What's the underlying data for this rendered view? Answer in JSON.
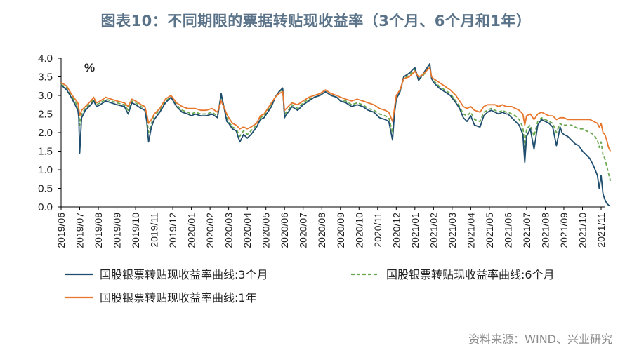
{
  "header": {
    "title": "图表10：不同期限的票据转贴现收益率（3个月、6个月和1年）"
  },
  "footer": {
    "source": "资料来源：WIND、兴业研究"
  },
  "chart_data": {
    "type": "line",
    "unit_label": "%",
    "ylim": [
      0,
      4
    ],
    "y_ticks": [
      "0.0",
      "0.5",
      "1.0",
      "1.5",
      "2.0",
      "2.5",
      "3.0",
      "3.5",
      "4.0"
    ],
    "x_ticks": [
      "2019/06",
      "2019/07",
      "2019/08",
      "2019/09",
      "2019/10",
      "2019/11",
      "2019/12",
      "2020/01",
      "2020/02",
      "2020/03",
      "2020/04",
      "2020/05",
      "2020/06",
      "2020/07",
      "2020/08",
      "2020/09",
      "2020/10",
      "2020/11",
      "2020/12",
      "2021/01",
      "2021/02",
      "2021/03",
      "2021/04",
      "2021/05",
      "2021/06",
      "2021/07",
      "2021/08",
      "2021/09",
      "2021/10",
      "2021/11"
    ],
    "grid": false,
    "legend_position": "bottom",
    "x": [
      0,
      0.3,
      0.6,
      0.9,
      0.95,
      1.0,
      1.1,
      1.3,
      1.6,
      1.75,
      1.9,
      2.1,
      2.4,
      2.7,
      3.0,
      3.4,
      3.6,
      3.8,
      4.0,
      4.3,
      4.5,
      4.6,
      4.7,
      4.85,
      5.0,
      5.3,
      5.6,
      5.9,
      6.2,
      6.5,
      6.8,
      7.0,
      7.2,
      7.5,
      7.8,
      8.1,
      8.4,
      8.6,
      8.9,
      9.0,
      9.2,
      9.4,
      9.6,
      9.8,
      10.0,
      10.2,
      10.5,
      10.7,
      10.9,
      11.1,
      11.3,
      11.5,
      11.7,
      11.9,
      12.0,
      12.1,
      12.2,
      12.4,
      12.7,
      13.0,
      13.3,
      13.6,
      13.9,
      14.2,
      14.5,
      14.8,
      15.0,
      15.3,
      15.6,
      15.9,
      16.2,
      16.5,
      16.8,
      17.1,
      17.4,
      17.6,
      17.8,
      17.9,
      18.0,
      18.2,
      18.4,
      18.7,
      19.0,
      19.2,
      19.4,
      19.6,
      19.8,
      19.9,
      20.0,
      20.3,
      20.6,
      20.9,
      21.2,
      21.4,
      21.6,
      21.8,
      22.0,
      22.2,
      22.5,
      22.7,
      22.9,
      23.1,
      23.3,
      23.5,
      23.7,
      23.9,
      24.0,
      24.2,
      24.4,
      24.6,
      24.8,
      24.9,
      25.0,
      25.2,
      25.4,
      25.6,
      25.8,
      26.0,
      26.2,
      26.4,
      26.6,
      26.8,
      26.9,
      27.0,
      27.2,
      27.4,
      27.6,
      27.8,
      28.0,
      28.2,
      28.4,
      28.6,
      28.8,
      28.9,
      29.0,
      29.1,
      29.2,
      29.3,
      29.4,
      29.5
    ],
    "series": [
      {
        "name": "国股银票转贴现收益率曲线:3个月",
        "color": "#1f4e6e",
        "dash": "solid",
        "values": [
          3.28,
          3.15,
          2.9,
          2.6,
          2.4,
          1.45,
          2.4,
          2.6,
          2.75,
          2.85,
          2.7,
          2.75,
          2.85,
          2.8,
          2.75,
          2.7,
          2.5,
          2.8,
          2.75,
          2.65,
          2.6,
          2.3,
          1.75,
          2.15,
          2.35,
          2.55,
          2.8,
          2.95,
          2.7,
          2.55,
          2.5,
          2.45,
          2.5,
          2.45,
          2.45,
          2.5,
          2.4,
          3.05,
          2.3,
          2.25,
          2.1,
          2.05,
          1.75,
          1.95,
          1.85,
          1.95,
          2.15,
          2.35,
          2.4,
          2.55,
          2.7,
          2.95,
          3.1,
          3.2,
          2.4,
          2.5,
          2.55,
          2.7,
          2.6,
          2.75,
          2.85,
          2.95,
          3.0,
          3.1,
          3.0,
          2.95,
          2.85,
          2.8,
          2.7,
          2.75,
          2.7,
          2.6,
          2.55,
          2.4,
          2.35,
          2.3,
          1.8,
          2.5,
          2.9,
          3.1,
          3.5,
          3.6,
          3.75,
          3.4,
          3.55,
          3.7,
          3.85,
          3.45,
          3.35,
          3.2,
          3.1,
          3.0,
          2.8,
          2.65,
          2.4,
          2.3,
          2.45,
          2.2,
          2.15,
          2.45,
          2.55,
          2.6,
          2.55,
          2.5,
          2.55,
          2.5,
          2.5,
          2.4,
          2.3,
          2.2,
          1.95,
          1.2,
          1.9,
          2.1,
          1.55,
          2.2,
          2.35,
          2.3,
          2.25,
          2.15,
          1.65,
          2.15,
          2.0,
          1.95,
          1.9,
          1.8,
          1.7,
          1.65,
          1.5,
          1.4,
          1.3,
          1.1,
          0.85,
          0.5,
          0.85,
          0.35,
          0.2,
          0.1,
          0.05,
          0.02
        ]
      },
      {
        "name": "国股银票转贴现收益率曲线:6个月",
        "color": "#6aa84f",
        "dash": "dashed",
        "values": [
          3.3,
          3.2,
          2.95,
          2.7,
          2.55,
          2.2,
          2.5,
          2.65,
          2.8,
          2.9,
          2.75,
          2.8,
          2.9,
          2.85,
          2.8,
          2.75,
          2.6,
          2.85,
          2.8,
          2.7,
          2.65,
          2.4,
          2.0,
          2.25,
          2.45,
          2.6,
          2.85,
          2.95,
          2.75,
          2.6,
          2.55,
          2.5,
          2.55,
          2.5,
          2.5,
          2.55,
          2.45,
          2.95,
          2.4,
          2.3,
          2.15,
          2.1,
          1.9,
          2.05,
          1.95,
          2.05,
          2.2,
          2.4,
          2.45,
          2.6,
          2.75,
          2.95,
          3.1,
          3.15,
          2.5,
          2.55,
          2.6,
          2.75,
          2.65,
          2.8,
          2.9,
          2.95,
          3.0,
          3.1,
          3.0,
          2.95,
          2.85,
          2.85,
          2.75,
          2.8,
          2.75,
          2.65,
          2.6,
          2.5,
          2.45,
          2.4,
          2.0,
          2.55,
          2.95,
          3.1,
          3.45,
          3.55,
          3.7,
          3.45,
          3.5,
          3.65,
          3.8,
          3.45,
          3.4,
          3.25,
          3.15,
          3.05,
          2.85,
          2.7,
          2.5,
          2.45,
          2.55,
          2.35,
          2.3,
          2.55,
          2.6,
          2.65,
          2.6,
          2.55,
          2.6,
          2.55,
          2.55,
          2.5,
          2.45,
          2.35,
          2.15,
          1.6,
          2.1,
          2.2,
          1.9,
          2.3,
          2.4,
          2.35,
          2.3,
          2.25,
          2.0,
          2.25,
          2.2,
          2.2,
          2.2,
          2.2,
          2.15,
          2.1,
          2.1,
          2.05,
          2.0,
          1.95,
          1.8,
          1.6,
          1.75,
          1.4,
          1.3,
          1.1,
          0.9,
          0.7
        ]
      },
      {
        "name": "国股银票转贴现收益率曲线:1年",
        "color": "#e8772e",
        "dash": "solid",
        "values": [
          3.35,
          3.25,
          3.0,
          2.8,
          2.65,
          2.45,
          2.6,
          2.7,
          2.85,
          2.95,
          2.8,
          2.85,
          2.95,
          2.9,
          2.85,
          2.8,
          2.7,
          2.9,
          2.85,
          2.75,
          2.7,
          2.5,
          2.25,
          2.35,
          2.5,
          2.65,
          2.9,
          3.0,
          2.8,
          2.7,
          2.65,
          2.65,
          2.65,
          2.6,
          2.6,
          2.65,
          2.55,
          2.85,
          2.5,
          2.4,
          2.25,
          2.2,
          2.1,
          2.15,
          2.1,
          2.15,
          2.25,
          2.45,
          2.5,
          2.65,
          2.8,
          2.95,
          3.05,
          3.1,
          2.6,
          2.65,
          2.7,
          2.8,
          2.75,
          2.85,
          2.95,
          3.0,
          3.05,
          3.15,
          3.05,
          3.0,
          2.95,
          2.9,
          2.85,
          2.9,
          2.85,
          2.8,
          2.75,
          2.65,
          2.6,
          2.55,
          2.3,
          2.65,
          3.0,
          3.15,
          3.45,
          3.5,
          3.65,
          3.5,
          3.55,
          3.65,
          3.75,
          3.5,
          3.45,
          3.35,
          3.25,
          3.15,
          3.0,
          2.85,
          2.7,
          2.65,
          2.7,
          2.6,
          2.55,
          2.7,
          2.75,
          2.75,
          2.75,
          2.7,
          2.75,
          2.7,
          2.7,
          2.7,
          2.65,
          2.6,
          2.5,
          2.2,
          2.45,
          2.5,
          2.35,
          2.5,
          2.55,
          2.5,
          2.45,
          2.45,
          2.35,
          2.4,
          2.4,
          2.4,
          2.35,
          2.35,
          2.35,
          2.35,
          2.35,
          2.35,
          2.35,
          2.3,
          2.25,
          2.15,
          2.25,
          2.0,
          1.95,
          1.8,
          1.6,
          1.5
        ]
      }
    ]
  }
}
